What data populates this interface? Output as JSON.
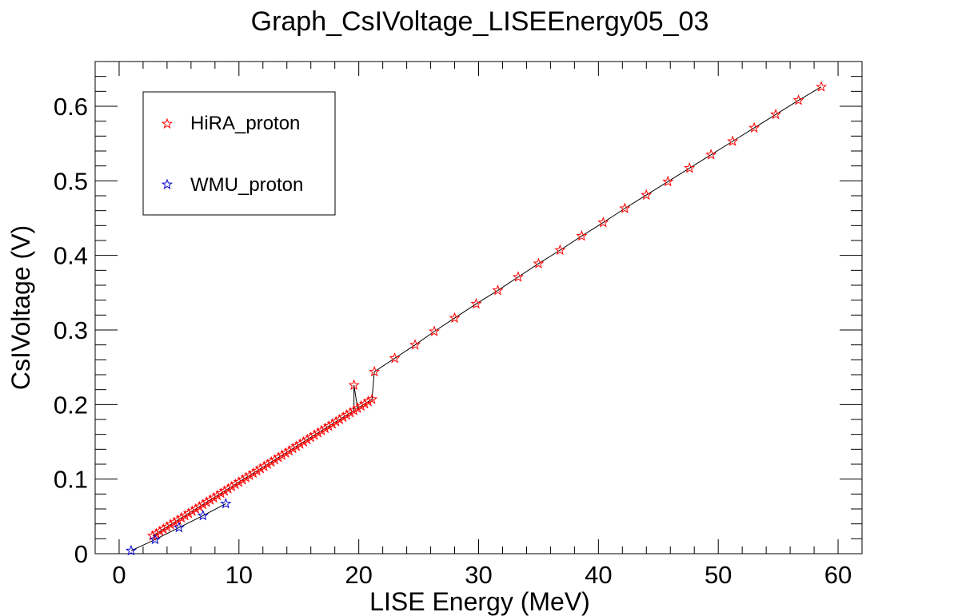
{
  "chart_data": {
    "type": "scatter",
    "title": "Graph_CsIVoltage_LISEEnergy05_03",
    "xlabel": "LISE Energy (MeV)",
    "ylabel": "CsIVoltage (V)",
    "xlim": [
      -2,
      62
    ],
    "ylim": [
      0,
      0.66
    ],
    "xticks": [
      0,
      10,
      20,
      30,
      40,
      50,
      60
    ],
    "xtick_labels": [
      "0",
      "10",
      "20",
      "30",
      "40",
      "50",
      "60"
    ],
    "yticks": [
      0,
      0.1,
      0.2,
      0.3,
      0.4,
      0.5,
      0.6
    ],
    "ytick_labels": [
      "0",
      "0.1",
      "0.2",
      "0.3",
      "0.4",
      "0.5",
      "0.6"
    ],
    "grid": false,
    "legend": "top-left",
    "series": [
      {
        "name": "HiRA_proton",
        "color": "#ff0000",
        "marker": "star",
        "line": true,
        "points": [
          [
            2.8,
            0.024
          ],
          [
            3.1,
            0.027
          ],
          [
            3.4,
            0.03
          ],
          [
            3.7,
            0.033
          ],
          [
            4.0,
            0.036
          ],
          [
            4.3,
            0.039
          ],
          [
            4.6,
            0.042
          ],
          [
            4.9,
            0.045
          ],
          [
            5.2,
            0.048
          ],
          [
            5.5,
            0.051
          ],
          [
            5.8,
            0.054
          ],
          [
            6.1,
            0.057
          ],
          [
            6.4,
            0.06
          ],
          [
            6.7,
            0.063
          ],
          [
            7.0,
            0.066
          ],
          [
            7.3,
            0.069
          ],
          [
            7.6,
            0.072
          ],
          [
            7.9,
            0.075
          ],
          [
            8.2,
            0.078
          ],
          [
            8.5,
            0.081
          ],
          [
            8.8,
            0.084
          ],
          [
            9.1,
            0.087
          ],
          [
            9.4,
            0.09
          ],
          [
            9.7,
            0.093
          ],
          [
            10.0,
            0.096
          ],
          [
            10.3,
            0.099
          ],
          [
            10.6,
            0.102
          ],
          [
            10.9,
            0.105
          ],
          [
            11.2,
            0.108
          ],
          [
            11.5,
            0.111
          ],
          [
            11.8,
            0.114
          ],
          [
            12.1,
            0.117
          ],
          [
            12.4,
            0.12
          ],
          [
            12.7,
            0.123
          ],
          [
            13.0,
            0.126
          ],
          [
            13.3,
            0.129
          ],
          [
            13.6,
            0.132
          ],
          [
            13.9,
            0.135
          ],
          [
            14.2,
            0.138
          ],
          [
            14.5,
            0.141
          ],
          [
            14.8,
            0.144
          ],
          [
            15.1,
            0.147
          ],
          [
            15.4,
            0.15
          ],
          [
            15.7,
            0.153
          ],
          [
            16.0,
            0.156
          ],
          [
            16.3,
            0.159
          ],
          [
            16.6,
            0.162
          ],
          [
            16.9,
            0.165
          ],
          [
            17.2,
            0.168
          ],
          [
            17.5,
            0.171
          ],
          [
            17.8,
            0.174
          ],
          [
            18.1,
            0.177
          ],
          [
            18.4,
            0.18
          ],
          [
            18.7,
            0.183
          ],
          [
            19.0,
            0.186
          ],
          [
            19.3,
            0.189
          ],
          [
            19.6,
            0.192
          ],
          [
            19.9,
            0.195
          ],
          [
            20.2,
            0.198
          ],
          [
            20.5,
            0.201
          ],
          [
            20.8,
            0.204
          ],
          [
            21.1,
            0.207
          ],
          [
            19.6,
            0.226
          ],
          [
            21.3,
            0.244
          ],
          [
            23.0,
            0.262
          ],
          [
            24.7,
            0.28
          ],
          [
            26.3,
            0.298
          ],
          [
            28.0,
            0.316
          ],
          [
            29.8,
            0.335
          ],
          [
            31.6,
            0.353
          ],
          [
            33.3,
            0.371
          ],
          [
            35.0,
            0.389
          ],
          [
            36.8,
            0.407
          ],
          [
            38.6,
            0.426
          ],
          [
            40.4,
            0.444
          ],
          [
            42.2,
            0.463
          ],
          [
            44.0,
            0.481
          ],
          [
            45.8,
            0.499
          ],
          [
            47.6,
            0.517
          ],
          [
            49.4,
            0.535
          ],
          [
            51.2,
            0.553
          ],
          [
            53.0,
            0.571
          ],
          [
            54.8,
            0.589
          ],
          [
            56.7,
            0.608
          ],
          [
            58.6,
            0.626
          ]
        ]
      },
      {
        "name": "WMU_proton",
        "color": "#0000cc",
        "marker": "star",
        "line": true,
        "points": [
          [
            1.0,
            0.004
          ],
          [
            3.0,
            0.019
          ],
          [
            5.0,
            0.035
          ],
          [
            7.0,
            0.051
          ],
          [
            8.9,
            0.067
          ]
        ]
      }
    ]
  }
}
